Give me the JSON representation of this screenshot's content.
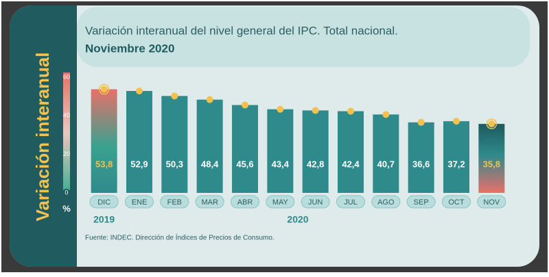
{
  "chart_data": {
    "type": "bar",
    "side_title": "Variación interanual",
    "title": "Variación interanual del nivel general del IPC. Total nacional.",
    "subtitle": "Noviembre 2020",
    "categories": [
      "DIC",
      "ENE",
      "FEB",
      "MAR",
      "ABR",
      "MAY",
      "JUN",
      "JUL",
      "AGO",
      "SEP",
      "OCT",
      "NOV"
    ],
    "values": [
      53.8,
      52.9,
      50.3,
      48.4,
      45.6,
      43.4,
      42.8,
      42.4,
      40.7,
      36.6,
      37.2,
      35.8
    ],
    "value_labels": [
      "53,8",
      "52,9",
      "50,3",
      "48,4",
      "45,6",
      "43,4",
      "42,8",
      "42,4",
      "40,7",
      "36,6",
      "37,2",
      "35,8"
    ],
    "color": "#2f8a8b",
    "ylim": [
      0,
      60
    ],
    "yticks": [
      0,
      20,
      40,
      60
    ],
    "y_unit": "%",
    "years": [
      "2019",
      "2020"
    ],
    "source": "Fuente: INDEC. Dirección de Índices de Precios de Consumo."
  }
}
